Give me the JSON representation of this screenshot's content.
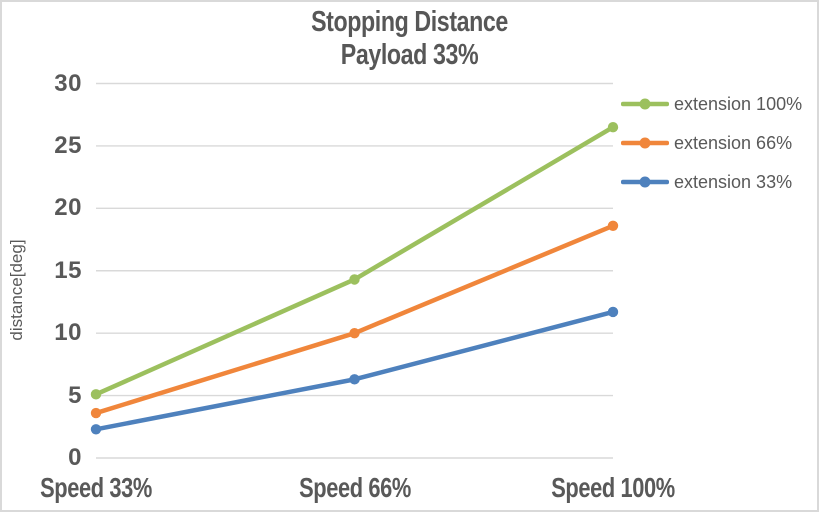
{
  "frame": {
    "background_color": "#ffffff",
    "border_color": "#d9d9d9"
  },
  "chart_data": {
    "type": "line",
    "title": "Stopping Distance",
    "subtitle": "Payload 33%",
    "xlabel": "",
    "ylabel": "distance[deg]",
    "categories": [
      "Speed 33%",
      "Speed 66%",
      "Speed 100%"
    ],
    "series": [
      {
        "name": "extension 100%",
        "color": "#9cc05e",
        "values": [
          5.1,
          14.3,
          26.5
        ]
      },
      {
        "name": "extension 66%",
        "color": "#f0863b",
        "values": [
          3.6,
          10.0,
          18.6
        ]
      },
      {
        "name": "extension 33%",
        "color": "#4e81bd",
        "values": [
          2.3,
          6.3,
          11.7
        ]
      }
    ],
    "ylim": [
      0,
      30
    ],
    "ytick_step": 5,
    "ytick_labels": [
      "0",
      "5",
      "10",
      "15",
      "20",
      "25",
      "30"
    ],
    "grid": "horizontal",
    "gridline_color": "#d9d9d9",
    "legend_position": "right",
    "text_color": "#595959",
    "marker": "circle"
  }
}
